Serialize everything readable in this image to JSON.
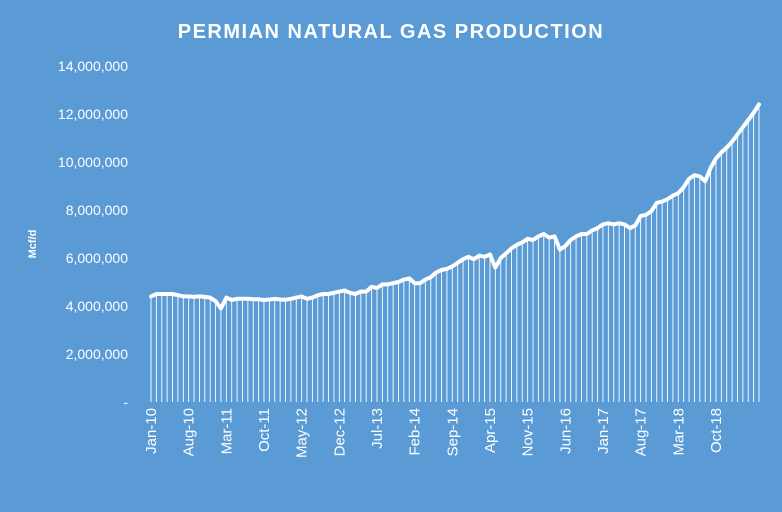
{
  "chart_data": {
    "type": "area",
    "title": "PERMIAN NATURAL GAS PRODUCTION",
    "xlabel": "",
    "ylabel": "Mcf/d",
    "ylim": [
      0,
      14000000
    ],
    "yticks": [
      0,
      2000000,
      4000000,
      6000000,
      8000000,
      10000000,
      12000000,
      14000000
    ],
    "ytick_labels": [
      "-",
      "2,000,000",
      "4,000,000",
      "6,000,000",
      "8,000,000",
      "10,000,000",
      "12,000,000",
      "14,000,000"
    ],
    "x_start": "2010-01",
    "xtick_labels": [
      "Jan-10",
      "Aug-10",
      "Mar-11",
      "Oct-11",
      "May-12",
      "Dec-12",
      "Jul-13",
      "Feb-14",
      "Sep-14",
      "Apr-15",
      "Nov-15",
      "Jun-16",
      "Jan-17",
      "Aug-17",
      "Mar-18",
      "Oct-18"
    ],
    "xtick_interval_months": 7,
    "grid": false,
    "legend": "none",
    "colors": {
      "background": "#5b9bd5",
      "series": "#ffffff"
    },
    "series": [
      {
        "values": [
          4400000,
          4500000,
          4500000,
          4500000,
          4500000,
          4450000,
          4400000,
          4400000,
          4380000,
          4400000,
          4380000,
          4350000,
          4200000,
          3900000,
          4350000,
          4250000,
          4300000,
          4300000,
          4300000,
          4280000,
          4280000,
          4250000,
          4270000,
          4300000,
          4270000,
          4260000,
          4300000,
          4350000,
          4400000,
          4300000,
          4350000,
          4450000,
          4500000,
          4500000,
          4550000,
          4600000,
          4650000,
          4550000,
          4500000,
          4600000,
          4600000,
          4800000,
          4750000,
          4900000,
          4900000,
          4950000,
          5000000,
          5100000,
          5150000,
          4950000,
          4950000,
          5100000,
          5200000,
          5400000,
          5500000,
          5550000,
          5650000,
          5800000,
          5950000,
          6050000,
          5950000,
          6100000,
          6050000,
          6150000,
          5600000,
          6000000,
          6200000,
          6400000,
          6550000,
          6650000,
          6800000,
          6750000,
          6900000,
          7000000,
          6850000,
          6900000,
          6350000,
          6500000,
          6750000,
          6900000,
          7000000,
          7000000,
          7150000,
          7250000,
          7400000,
          7450000,
          7400000,
          7450000,
          7400000,
          7250000,
          7350000,
          7750000,
          7800000,
          7950000,
          8300000,
          8350000,
          8450000,
          8600000,
          8700000,
          8950000,
          9300000,
          9450000,
          9400000,
          9200000,
          9750000,
          10150000,
          10400000,
          10600000,
          10850000,
          11150000,
          11450000,
          11750000,
          12050000,
          12400000
        ]
      }
    ]
  }
}
